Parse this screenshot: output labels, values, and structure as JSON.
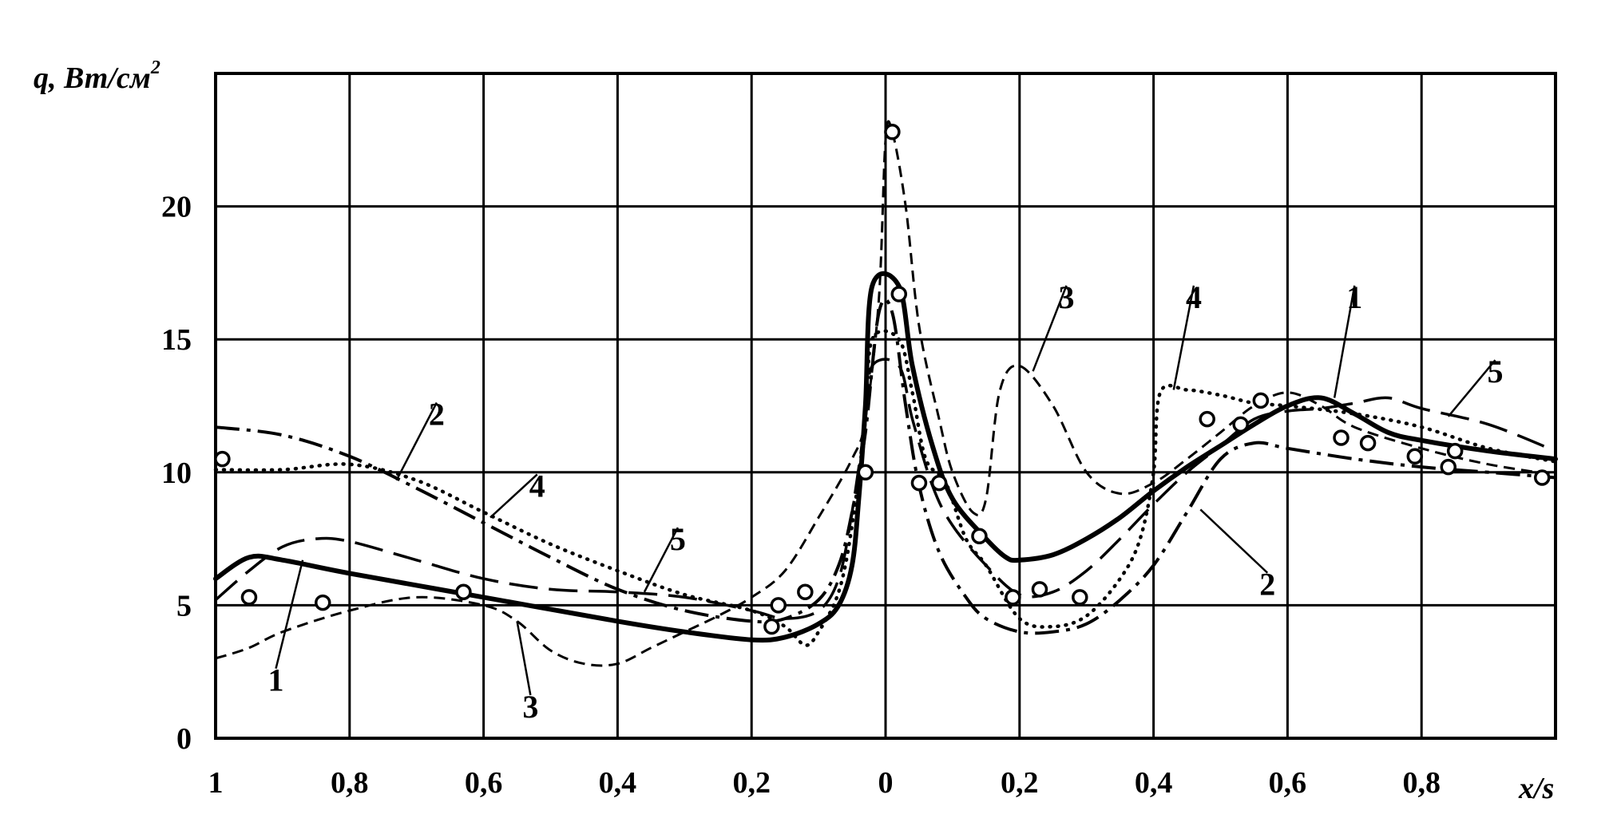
{
  "chart_data": {
    "type": "line",
    "title": "",
    "ylabel": "q, Вт/см",
    "ylabel_sup": "2",
    "xlabel": "x/s",
    "xlim": [
      -1,
      1
    ],
    "ylim": [
      0,
      25
    ],
    "grid": true,
    "x_ticks": [
      {
        "value": -1.0,
        "label": "1"
      },
      {
        "value": -0.8,
        "label": "0,8"
      },
      {
        "value": -0.6,
        "label": "0,6"
      },
      {
        "value": -0.4,
        "label": "0,4"
      },
      {
        "value": -0.2,
        "label": "0,2"
      },
      {
        "value": 0.0,
        "label": "0"
      },
      {
        "value": 0.2,
        "label": "0,2"
      },
      {
        "value": 0.4,
        "label": "0,4"
      },
      {
        "value": 0.6,
        "label": "0,6"
      },
      {
        "value": 0.8,
        "label": "0,8"
      }
    ],
    "y_ticks": [
      {
        "value": 0,
        "label": "0"
      },
      {
        "value": 5,
        "label": "5"
      },
      {
        "value": 10,
        "label": "10"
      },
      {
        "value": 15,
        "label": "15"
      },
      {
        "value": 20,
        "label": "20"
      }
    ],
    "series": [
      {
        "name": "1",
        "style": "solid",
        "points": [
          [
            -1.0,
            6.0
          ],
          [
            -0.95,
            6.8
          ],
          [
            -0.9,
            6.7
          ],
          [
            -0.8,
            6.2
          ],
          [
            -0.6,
            5.3
          ],
          [
            -0.4,
            4.4
          ],
          [
            -0.3,
            4.0
          ],
          [
            -0.2,
            3.7
          ],
          [
            -0.15,
            3.8
          ],
          [
            -0.1,
            4.3
          ],
          [
            -0.07,
            5.0
          ],
          [
            -0.05,
            6.5
          ],
          [
            -0.04,
            9.0
          ],
          [
            -0.03,
            12.5
          ],
          [
            -0.02,
            17.0
          ],
          [
            0.02,
            17.0
          ],
          [
            0.04,
            14.0
          ],
          [
            0.07,
            11.0
          ],
          [
            0.1,
            9.0
          ],
          [
            0.15,
            7.5
          ],
          [
            0.18,
            6.8
          ],
          [
            0.2,
            6.7
          ],
          [
            0.25,
            6.9
          ],
          [
            0.3,
            7.5
          ],
          [
            0.35,
            8.3
          ],
          [
            0.4,
            9.3
          ],
          [
            0.45,
            10.2
          ],
          [
            0.5,
            11.0
          ],
          [
            0.55,
            11.8
          ],
          [
            0.6,
            12.5
          ],
          [
            0.65,
            12.8
          ],
          [
            0.7,
            12.2
          ],
          [
            0.75,
            11.5
          ],
          [
            0.8,
            11.2
          ],
          [
            0.9,
            10.8
          ],
          [
            1.0,
            10.5
          ]
        ]
      },
      {
        "name": "2",
        "style": "dash-dot",
        "points": [
          [
            -1.0,
            11.7
          ],
          [
            -0.9,
            11.4
          ],
          [
            -0.8,
            10.6
          ],
          [
            -0.7,
            9.4
          ],
          [
            -0.6,
            8.1
          ],
          [
            -0.5,
            6.8
          ],
          [
            -0.4,
            5.6
          ],
          [
            -0.3,
            4.8
          ],
          [
            -0.2,
            4.4
          ],
          [
            -0.15,
            4.5
          ],
          [
            -0.1,
            5.2
          ],
          [
            -0.07,
            6.5
          ],
          [
            -0.05,
            8.5
          ],
          [
            -0.03,
            11.5
          ],
          [
            -0.01,
            16.0
          ],
          [
            0.01,
            16.0
          ],
          [
            0.03,
            12.5
          ],
          [
            0.05,
            9.5
          ],
          [
            0.08,
            7.0
          ],
          [
            0.12,
            5.3
          ],
          [
            0.15,
            4.5
          ],
          [
            0.2,
            4.0
          ],
          [
            0.25,
            4.0
          ],
          [
            0.3,
            4.3
          ],
          [
            0.35,
            5.2
          ],
          [
            0.4,
            6.5
          ],
          [
            0.45,
            8.5
          ],
          [
            0.5,
            10.5
          ],
          [
            0.55,
            11.1
          ],
          [
            0.6,
            10.9
          ],
          [
            0.7,
            10.5
          ],
          [
            0.8,
            10.2
          ],
          [
            0.9,
            10.0
          ],
          [
            1.0,
            9.8
          ]
        ]
      },
      {
        "name": "3",
        "style": "short-dash",
        "points": [
          [
            -1.0,
            3.0
          ],
          [
            -0.95,
            3.4
          ],
          [
            -0.9,
            4.0
          ],
          [
            -0.8,
            4.8
          ],
          [
            -0.7,
            5.3
          ],
          [
            -0.6,
            5.0
          ],
          [
            -0.55,
            4.4
          ],
          [
            -0.5,
            3.3
          ],
          [
            -0.45,
            2.8
          ],
          [
            -0.4,
            2.8
          ],
          [
            -0.35,
            3.4
          ],
          [
            -0.3,
            4.0
          ],
          [
            -0.25,
            4.6
          ],
          [
            -0.2,
            5.3
          ],
          [
            -0.15,
            6.3
          ],
          [
            -0.1,
            8.3
          ],
          [
            -0.05,
            10.5
          ],
          [
            -0.03,
            12.0
          ],
          [
            -0.01,
            16.5
          ],
          [
            0.0,
            22.5
          ],
          [
            0.01,
            22.8
          ],
          [
            0.03,
            20.0
          ],
          [
            0.05,
            15.5
          ],
          [
            0.08,
            12.0
          ],
          [
            0.1,
            10.0
          ],
          [
            0.13,
            8.5
          ],
          [
            0.15,
            9.0
          ],
          [
            0.17,
            13.0
          ],
          [
            0.2,
            14.0
          ],
          [
            0.25,
            12.5
          ],
          [
            0.3,
            10.0
          ],
          [
            0.35,
            9.2
          ],
          [
            0.4,
            9.6
          ],
          [
            0.45,
            10.5
          ],
          [
            0.5,
            11.5
          ],
          [
            0.55,
            12.5
          ],
          [
            0.6,
            13.0
          ],
          [
            0.65,
            12.5
          ],
          [
            0.7,
            11.7
          ],
          [
            0.8,
            10.9
          ],
          [
            0.9,
            10.3
          ],
          [
            1.0,
            9.9
          ]
        ]
      },
      {
        "name": "4",
        "style": "dotted",
        "points": [
          [
            -1.0,
            10.1
          ],
          [
            -0.9,
            10.1
          ],
          [
            -0.8,
            10.3
          ],
          [
            -0.7,
            9.7
          ],
          [
            -0.6,
            8.5
          ],
          [
            -0.5,
            7.3
          ],
          [
            -0.4,
            6.3
          ],
          [
            -0.3,
            5.4
          ],
          [
            -0.2,
            4.8
          ],
          [
            -0.15,
            4.2
          ],
          [
            -0.12,
            3.5
          ],
          [
            -0.1,
            4.0
          ],
          [
            -0.07,
            5.5
          ],
          [
            -0.05,
            8.0
          ],
          [
            -0.03,
            12.0
          ],
          [
            -0.02,
            15.0
          ],
          [
            0.02,
            15.0
          ],
          [
            0.04,
            13.0
          ],
          [
            0.06,
            10.5
          ],
          [
            0.09,
            9.6
          ],
          [
            0.12,
            7.5
          ],
          [
            0.15,
            6.5
          ],
          [
            0.2,
            4.5
          ],
          [
            0.25,
            4.2
          ],
          [
            0.3,
            4.6
          ],
          [
            0.35,
            6.0
          ],
          [
            0.38,
            7.5
          ],
          [
            0.4,
            10.0
          ],
          [
            0.41,
            13.0
          ],
          [
            0.45,
            13.1
          ],
          [
            0.5,
            12.9
          ],
          [
            0.55,
            12.6
          ],
          [
            0.6,
            12.5
          ],
          [
            0.7,
            12.2
          ],
          [
            0.8,
            11.7
          ],
          [
            0.9,
            10.9
          ],
          [
            1.0,
            10.4
          ]
        ]
      },
      {
        "name": "5",
        "style": "long-dash",
        "points": [
          [
            -1.0,
            5.2
          ],
          [
            -0.95,
            6.3
          ],
          [
            -0.9,
            7.2
          ],
          [
            -0.85,
            7.5
          ],
          [
            -0.8,
            7.4
          ],
          [
            -0.7,
            6.7
          ],
          [
            -0.6,
            6.0
          ],
          [
            -0.5,
            5.6
          ],
          [
            -0.4,
            5.5
          ],
          [
            -0.3,
            5.3
          ],
          [
            -0.2,
            4.8
          ],
          [
            -0.15,
            4.5
          ],
          [
            -0.1,
            4.8
          ],
          [
            -0.07,
            6.0
          ],
          [
            -0.05,
            8.5
          ],
          [
            -0.03,
            12.0
          ],
          [
            -0.02,
            14.0
          ],
          [
            0.02,
            14.0
          ],
          [
            0.04,
            12.0
          ],
          [
            0.07,
            9.5
          ],
          [
            0.1,
            8.0
          ],
          [
            0.15,
            6.5
          ],
          [
            0.2,
            5.4
          ],
          [
            0.25,
            5.5
          ],
          [
            0.3,
            6.3
          ],
          [
            0.35,
            7.5
          ],
          [
            0.4,
            8.8
          ],
          [
            0.45,
            10.0
          ],
          [
            0.5,
            11.0
          ],
          [
            0.55,
            12.0
          ],
          [
            0.6,
            12.3
          ],
          [
            0.65,
            12.4
          ],
          [
            0.7,
            12.6
          ],
          [
            0.75,
            12.8
          ],
          [
            0.8,
            12.4
          ],
          [
            0.9,
            11.8
          ],
          [
            1.0,
            10.8
          ]
        ]
      }
    ],
    "markers": [
      [
        -0.99,
        10.5
      ],
      [
        -0.95,
        5.3
      ],
      [
        -0.84,
        5.1
      ],
      [
        -0.63,
        5.5
      ],
      [
        -0.17,
        4.2
      ],
      [
        -0.16,
        5.0
      ],
      [
        -0.12,
        5.5
      ],
      [
        -0.03,
        10.0
      ],
      [
        0.01,
        22.8
      ],
      [
        0.02,
        16.7
      ],
      [
        0.05,
        9.6
      ],
      [
        0.08,
        9.6
      ],
      [
        0.14,
        7.6
      ],
      [
        0.19,
        5.3
      ],
      [
        0.23,
        5.6
      ],
      [
        0.29,
        5.3
      ],
      [
        0.48,
        12.0
      ],
      [
        0.53,
        11.8
      ],
      [
        0.56,
        12.7
      ],
      [
        0.68,
        11.3
      ],
      [
        0.72,
        11.1
      ],
      [
        0.79,
        10.6
      ],
      [
        0.84,
        10.2
      ],
      [
        0.85,
        10.8
      ],
      [
        0.98,
        9.8
      ]
    ],
    "annotations": [
      {
        "text": "1",
        "x": -0.91,
        "y": 2.2,
        "to_x": -0.87,
        "to_y": 6.7
      },
      {
        "text": "2",
        "x": -0.67,
        "y": 12.2,
        "to_x": -0.73,
        "to_y": 9.7
      },
      {
        "text": "3",
        "x": -0.53,
        "y": 1.2,
        "to_x": -0.55,
        "to_y": 4.4
      },
      {
        "text": "4",
        "x": -0.52,
        "y": 9.5,
        "to_x": -0.59,
        "to_y": 8.3
      },
      {
        "text": "5",
        "x": -0.31,
        "y": 7.5,
        "to_x": -0.36,
        "to_y": 5.5
      },
      {
        "text": "3",
        "x": 0.27,
        "y": 16.6,
        "to_x": 0.22,
        "to_y": 13.8
      },
      {
        "text": "4",
        "x": 0.46,
        "y": 16.6,
        "to_x": 0.43,
        "to_y": 13.1
      },
      {
        "text": "1",
        "x": 0.7,
        "y": 16.6,
        "to_x": 0.67,
        "to_y": 12.8
      },
      {
        "text": "2",
        "x": 0.57,
        "y": 5.8,
        "to_x": 0.47,
        "to_y": 8.6
      },
      {
        "text": "5",
        "x": 0.91,
        "y": 13.8,
        "to_x": 0.84,
        "to_y": 12.1
      }
    ]
  }
}
